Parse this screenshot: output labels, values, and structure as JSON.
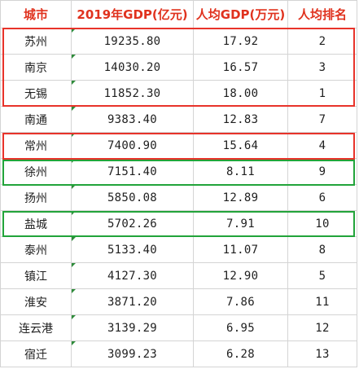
{
  "table": {
    "headers": [
      "城市",
      "2019年GDP(亿元)",
      "人均GDP(万元)",
      "人均排名"
    ],
    "rows": [
      {
        "city": "苏州",
        "gdp": "19235.80",
        "per_capita": "17.92",
        "rank": "2"
      },
      {
        "city": "南京",
        "gdp": "14030.20",
        "per_capita": "16.57",
        "rank": "3"
      },
      {
        "city": "无锡",
        "gdp": "11852.30",
        "per_capita": "18.00",
        "rank": "1"
      },
      {
        "city": "南通",
        "gdp": "9383.40",
        "per_capita": "12.83",
        "rank": "7"
      },
      {
        "city": "常州",
        "gdp": "7400.90",
        "per_capita": "15.64",
        "rank": "4"
      },
      {
        "city": "徐州",
        "gdp": "7151.40",
        "per_capita": "8.11",
        "rank": "9"
      },
      {
        "city": "扬州",
        "gdp": "5850.08",
        "per_capita": "12.89",
        "rank": "6"
      },
      {
        "city": "盐城",
        "gdp": "5702.26",
        "per_capita": "7.91",
        "rank": "10"
      },
      {
        "city": "泰州",
        "gdp": "5133.40",
        "per_capita": "11.07",
        "rank": "8"
      },
      {
        "city": "镇江",
        "gdp": "4127.30",
        "per_capita": "12.90",
        "rank": "5"
      },
      {
        "city": "淮安",
        "gdp": "3871.20",
        "per_capita": "7.86",
        "rank": "11"
      },
      {
        "city": "连云港",
        "gdp": "3139.29",
        "per_capita": "6.95",
        "rank": "12"
      },
      {
        "city": "宿迁",
        "gdp": "3099.23",
        "per_capita": "6.28",
        "rank": "13"
      }
    ]
  },
  "colors": {
    "header_text": "#e0321e",
    "highlight_red": "#e8332a",
    "highlight_green": "#22a43a",
    "gridline": "#d4d4d4",
    "cell_marker": "#2e8b3a"
  }
}
